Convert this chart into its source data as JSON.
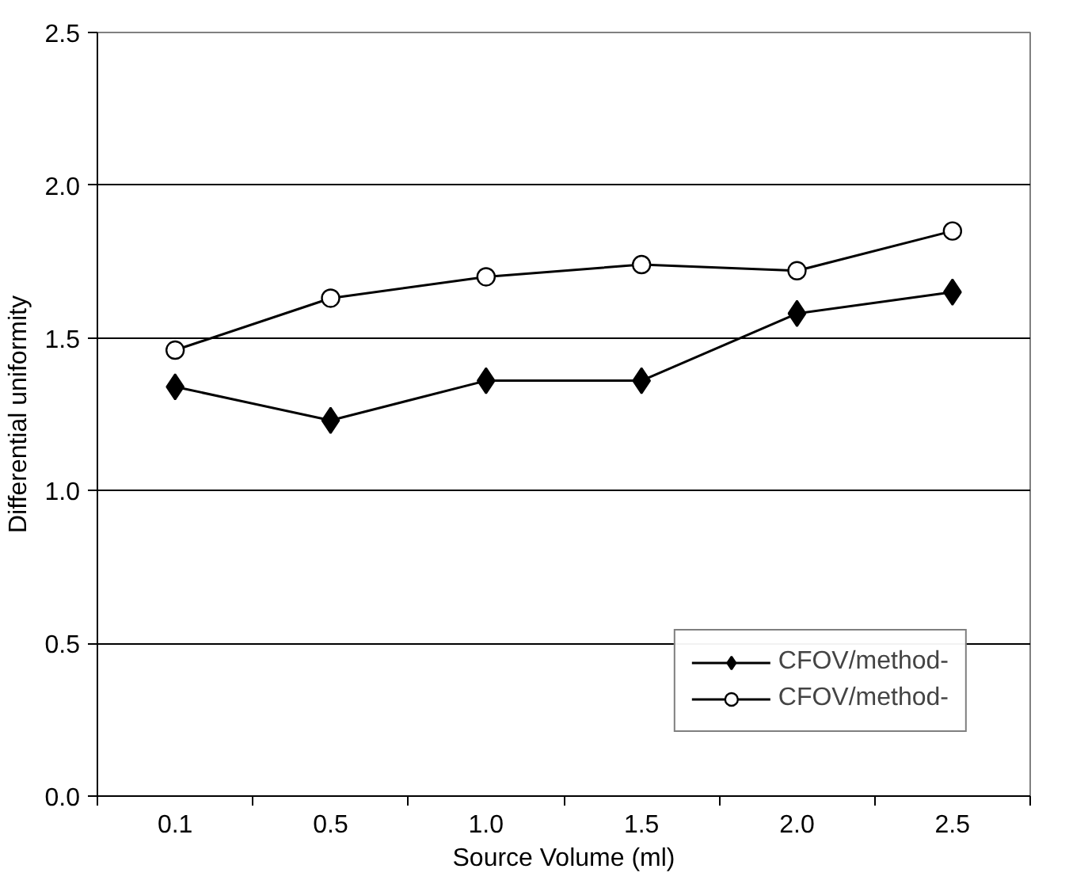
{
  "chart_data": {
    "type": "line",
    "xlabel": "Source Volume (ml)",
    "ylabel": "Differential uniformity",
    "categories": [
      "0.1",
      "0.5",
      "1.0",
      "1.5",
      "2.0",
      "2.5"
    ],
    "series": [
      {
        "name": "CFOV/method-",
        "color": "#000000",
        "marker": "diamond",
        "values": [
          1.34,
          1.23,
          1.36,
          1.36,
          1.58,
          1.65
        ]
      },
      {
        "name": "CFOV/method-",
        "color": "#000000",
        "marker": "circle",
        "values": [
          1.46,
          1.63,
          1.7,
          1.74,
          1.72,
          1.85
        ]
      }
    ],
    "ylim": [
      0,
      2.5
    ],
    "yticks": [
      {
        "value": 0,
        "label": "0.0"
      },
      {
        "value": 0.5,
        "label": "0.5"
      },
      {
        "value": 1,
        "label": "1.0"
      },
      {
        "value": 1.5,
        "label": "1.5"
      },
      {
        "value": 2,
        "label": "2.0"
      },
      {
        "value": 2.5,
        "label": "2.5"
      }
    ],
    "grid": "y",
    "legend": "bottom right",
    "line_style": "solid"
  }
}
